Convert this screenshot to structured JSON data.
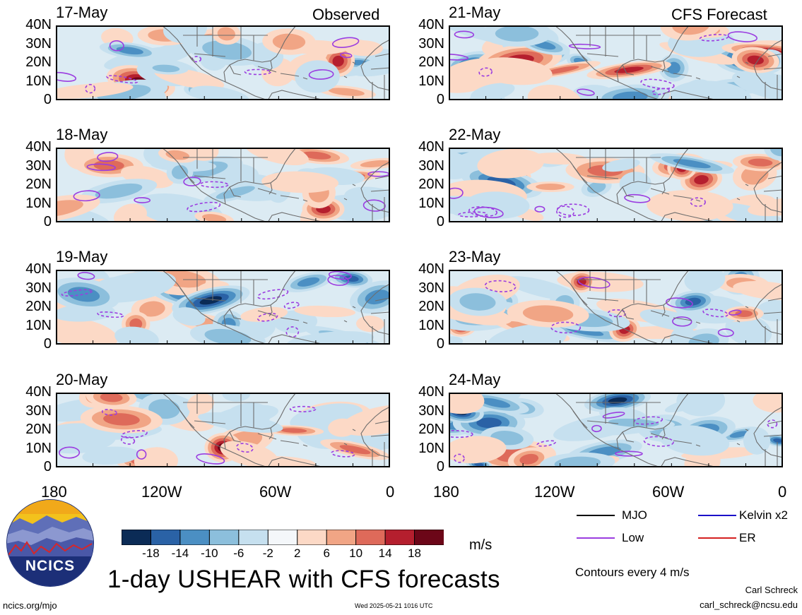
{
  "colors": {
    "scale": [
      "#0b2b56",
      "#2a62a6",
      "#4b8fc3",
      "#8cbfdc",
      "#c6e0ef",
      "#f4f7fa",
      "#fcd9c6",
      "#f1a585",
      "#de6a5a",
      "#b51f2e",
      "#6c0618"
    ],
    "mjo": "#000000",
    "kelvin": "#1a10c8",
    "low": "#9b3de0",
    "er": "#d42020",
    "coast": "#6d6d6d"
  },
  "headers": {
    "observed": "Observed",
    "forecast": "CFS Forecast"
  },
  "panels_left": [
    {
      "date": "17-May"
    },
    {
      "date": "18-May"
    },
    {
      "date": "19-May"
    },
    {
      "date": "20-May"
    }
  ],
  "panels_right": [
    {
      "date": "21-May"
    },
    {
      "date": "22-May"
    },
    {
      "date": "23-May"
    },
    {
      "date": "24-May"
    }
  ],
  "y_ticks": [
    "40N",
    "30N",
    "20N",
    "10N",
    "0"
  ],
  "x_ticks": [
    "180",
    "120W",
    "60W",
    "0"
  ],
  "colorbar": {
    "ticks": [
      "-18",
      "-14",
      "-10",
      "-6",
      "-2",
      "2",
      "6",
      "10",
      "14",
      "18"
    ],
    "unit": "m/s"
  },
  "legend": {
    "mjo": "MJO",
    "kelvin": "Kelvin x2",
    "low": "Low",
    "er": "ER",
    "contours": "Contours every 4 m/s"
  },
  "logo_text": "NCICS",
  "title": "1-day USHEAR with CFS forecasts",
  "footer": {
    "url": "ncics.org/mjo",
    "timestamp": "Wed 2025-05-21 1016 UTC",
    "author": "Carl Schreck",
    "email": "carl_schreck@ncsu.edu"
  },
  "chart_data": {
    "type": "heatmap",
    "variable": "1-day USHEAR",
    "unit": "m/s",
    "levels": [
      -18,
      -14,
      -10,
      -6,
      -2,
      2,
      6,
      10,
      14,
      18
    ],
    "lon_ticks": [
      "180",
      "120W",
      "60W",
      "0"
    ],
    "lat_ticks": [
      "0",
      "10N",
      "20N",
      "30N",
      "40N"
    ],
    "observed_dates": [
      "17-May",
      "18-May",
      "19-May",
      "20-May"
    ],
    "forecast_dates": [
      "21-May",
      "22-May",
      "23-May",
      "24-May"
    ],
    "contour_series": [
      "MJO",
      "Kelvin x2",
      "Low",
      "ER"
    ],
    "contour_interval": "4 m/s"
  }
}
